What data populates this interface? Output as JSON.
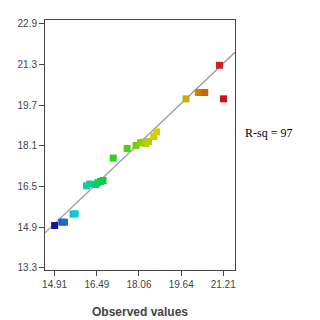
{
  "chart_data": {
    "type": "scatter",
    "xlabel": "Observed values",
    "annotation": "R-sq = 97",
    "grid": false,
    "xlim": [
      14.55,
      21.65
    ],
    "ylim": [
      13.22,
      23.05
    ],
    "xticks": [
      14.91,
      16.49,
      18.06,
      19.64,
      21.21
    ],
    "yticks": [
      13.3,
      14.9,
      16.5,
      18.1,
      19.7,
      21.3,
      22.9
    ],
    "series": [
      {
        "type": "scatter",
        "marker": "square",
        "x": [
          14.91,
          15.18,
          15.28,
          15.6,
          15.68,
          16.1,
          16.22,
          16.45,
          16.52,
          16.62,
          16.72,
          17.1,
          17.62,
          17.95,
          18.12,
          18.2,
          18.26,
          18.32,
          18.42,
          18.62,
          18.72,
          19.82,
          20.28,
          20.43,
          20.52,
          21.07,
          21.22
        ],
        "values": [
          14.97,
          15.1,
          15.1,
          15.42,
          15.43,
          16.53,
          16.6,
          16.58,
          16.65,
          16.7,
          16.74,
          17.62,
          18.0,
          18.12,
          18.22,
          18.24,
          18.24,
          18.2,
          18.27,
          18.47,
          18.65,
          19.95,
          20.2,
          20.2,
          20.2,
          21.27,
          19.95
        ],
        "colors": [
          "#1515a0",
          "#1c55b8",
          "#1c6ecc",
          "#1ab5cc",
          "#15cccc",
          "#10ccaa",
          "#10cc99",
          "#10cc77",
          "#10cc66",
          "#10cc55",
          "#10cc44",
          "#33cc22",
          "#55cc11",
          "#77cc11",
          "#88cc00",
          "#99cc00",
          "#99cc00",
          "#aacc00",
          "#bbcc00",
          "#cccc00",
          "#ddcc00",
          "#ccaa00",
          "#cc8800",
          "#cc7700",
          "#cc6600",
          "#cc2222",
          "#cc1111"
        ]
      },
      {
        "type": "line",
        "line_style": "solid",
        "x": [
          14.55,
          21.65
        ],
        "values": [
          14.68,
          21.78
        ],
        "color": "#999999"
      }
    ]
  }
}
